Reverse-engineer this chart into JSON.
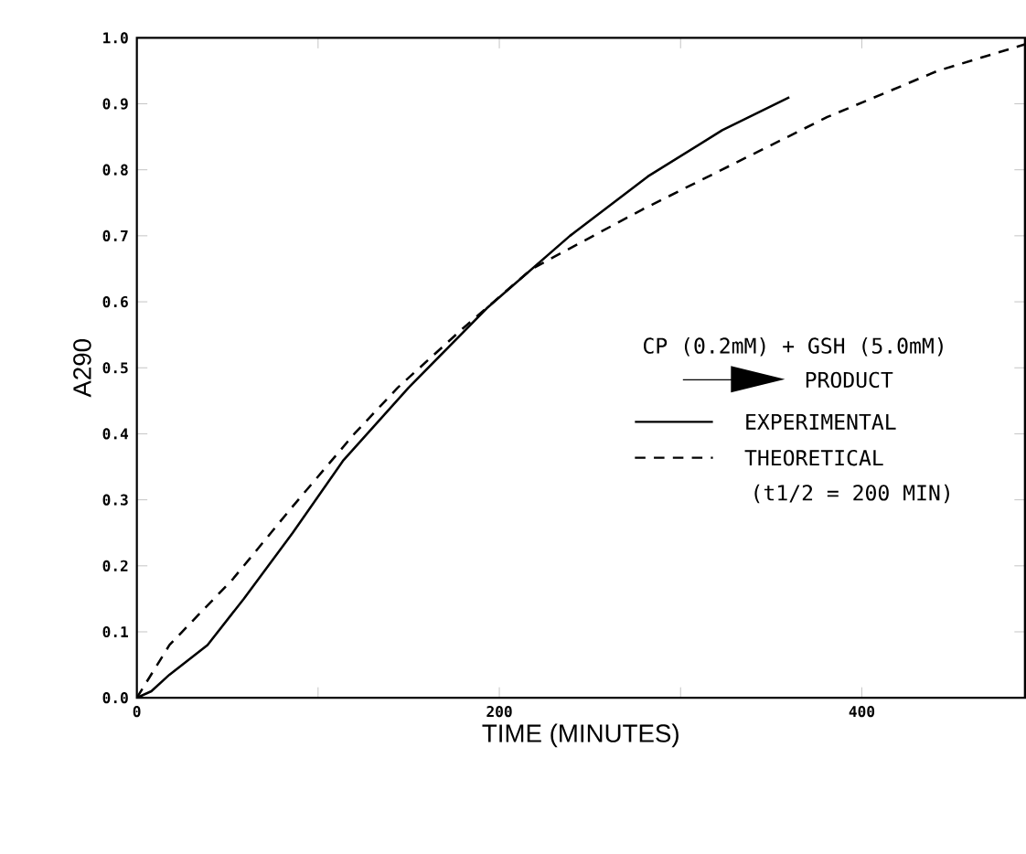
{
  "chart_data": {
    "type": "line",
    "xlabel": "TIME  (MINUTES)",
    "ylabel": "A290",
    "xlim": [
      0,
      490
    ],
    "ylim": [
      0,
      1.0
    ],
    "xticks": [
      0,
      {
        "value": 100,
        "label": null
      },
      200,
      {
        "value": 300,
        "label": null
      },
      400
    ],
    "yticks": [
      {
        "value": 0,
        "label": "0.0"
      },
      0.1,
      0.2,
      0.3,
      0.4,
      0.5,
      0.6,
      0.7,
      0.8,
      0.9,
      {
        "value": 1,
        "label": "1.0"
      }
    ],
    "legend": "right",
    "annotations": [
      "CP  (0.2mM) + GSH  (5.0mM)",
      "PRODUCT",
      "(t1/2 = 200 MIN)"
    ],
    "series": [
      {
        "name": "EXPERIMENTAL",
        "color": "#000000",
        "line_style": "solid",
        "x": [
          0,
          8,
          18,
          39,
          59,
          86,
          114,
          150,
          193,
          239,
          282,
          323,
          360
        ],
        "values": [
          0,
          0.01,
          0.035,
          0.08,
          0.15,
          0.25,
          0.36,
          0.47,
          0.59,
          0.7,
          0.79,
          0.86,
          0.91
        ]
      },
      {
        "name": "THEORETICAL",
        "color": "#000000",
        "line_style": "dashed",
        "x": [
          0,
          18,
          53,
          86,
          120,
          144,
          180,
          218,
          279,
          330,
          381,
          442,
          490
        ],
        "values": [
          0,
          0.08,
          0.18,
          0.29,
          0.4,
          0.47,
          0.56,
          0.65,
          0.74,
          0.81,
          0.88,
          0.95,
          0.99
        ]
      }
    ]
  }
}
